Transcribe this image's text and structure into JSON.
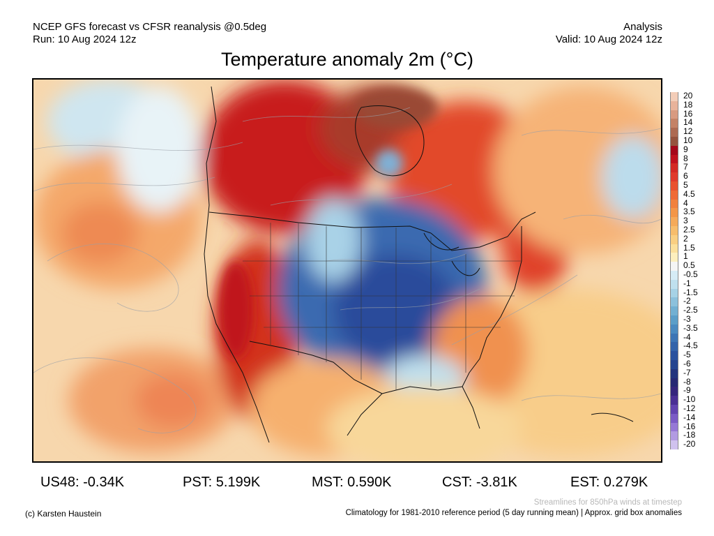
{
  "header": {
    "left_line1": "NCEP GFS forecast vs CFSR reanalysis @0.5deg",
    "left_line2": "Run: 10 Aug 2024 12z",
    "right_line1": "Analysis",
    "right_line2": "Valid: 10 Aug 2024 12z"
  },
  "title": "Temperature anomaly 2m (°C)",
  "colorbar": {
    "labels": [
      "20",
      "18",
      "16",
      "14",
      "12",
      "10",
      "9",
      "8",
      "7",
      "6",
      "5",
      "4.5",
      "4",
      "3.5",
      "3",
      "2.5",
      "2",
      "1.5",
      "1",
      "0.5",
      "-0.5",
      "-1",
      "-1.5",
      "-2",
      "-2.5",
      "-3",
      "-3.5",
      "-4",
      "-4.5",
      "-5",
      "-6",
      "-7",
      "-8",
      "-9",
      "-10",
      "-12",
      "-14",
      "-16",
      "-18",
      "-20"
    ],
    "colors": [
      "#f3cdb8",
      "#e8b39b",
      "#d89a80",
      "#c48266",
      "#ad6a52",
      "#95533e",
      "#a5081b",
      "#c0121f",
      "#d42a25",
      "#e03a2c",
      "#e9512f",
      "#ef6a35",
      "#f1813d",
      "#f39648",
      "#f5aa5a",
      "#f7bd6c",
      "#f9cf82",
      "#fbe09c",
      "#fdefbe",
      "#f5f5f5",
      "#d6ecf6",
      "#bfe0ee",
      "#a6d2e6",
      "#8cc1dc",
      "#72b0d2",
      "#5b9ec8",
      "#4a8ac0",
      "#3d75b5",
      "#3363aa",
      "#2a529e",
      "#24448f",
      "#22347d",
      "#262873",
      "#35257c",
      "#4a2f94",
      "#6243b0",
      "#7b5bc6",
      "#9678d6",
      "#b29be2",
      "#d0c2ee"
    ]
  },
  "map": {
    "anomaly_regions": [
      {
        "name": "western-canada-warm",
        "anomaly": 7
      },
      {
        "name": "hudson-bay-warm",
        "anomaly": 10
      },
      {
        "name": "eastern-canada-warm",
        "anomaly": 5
      },
      {
        "name": "us-west-warm",
        "anomaly": 6
      },
      {
        "name": "central-us-cold",
        "anomaly": -5
      },
      {
        "name": "southeast-us-warm",
        "anomaly": 2
      },
      {
        "name": "atlantic-warm",
        "anomaly": 2
      },
      {
        "name": "pacific-warm",
        "anomaly": 2.5
      }
    ]
  },
  "stats": [
    {
      "label": "US48: -0.34K"
    },
    {
      "label": "PST: 5.199K"
    },
    {
      "label": "MST: 0.590K"
    },
    {
      "label": "CST: -3.81K"
    },
    {
      "label": "EST: 0.279K"
    }
  ],
  "footer": {
    "credit": "(c) Karsten Haustein",
    "streamlines_note": "Streamlines for 850hPa winds at timestep",
    "climatology_note": "Climatology for 1981-2010 reference period (5 day running mean) | Approx. grid box anomalies"
  }
}
